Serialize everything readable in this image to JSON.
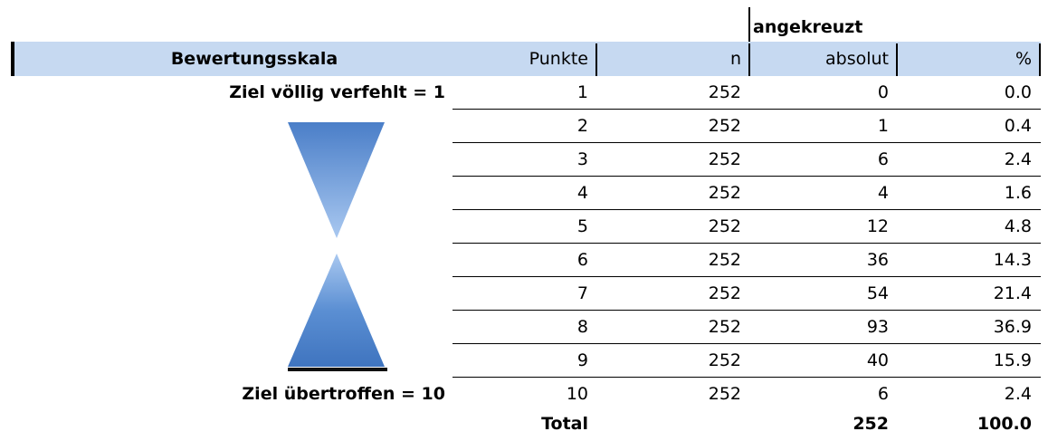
{
  "table": {
    "group_header": "angekreuzt",
    "columns": [
      "Bewertungsskala",
      "Punkte",
      "n",
      "absolut",
      "%"
    ],
    "scale_labels": {
      "top": "Ziel völlig verfehlt = 1",
      "bottom": "Ziel übertroffen = 10"
    },
    "rows": [
      [
        "1",
        "252",
        "0",
        "0.0"
      ],
      [
        "2",
        "252",
        "1",
        "0.4"
      ],
      [
        "3",
        "252",
        "6",
        "2.4"
      ],
      [
        "4",
        "252",
        "4",
        "1.6"
      ],
      [
        "5",
        "252",
        "12",
        "4.8"
      ],
      [
        "6",
        "252",
        "36",
        "14.3"
      ],
      [
        "7",
        "252",
        "54",
        "21.4"
      ],
      [
        "8",
        "252",
        "93",
        "36.9"
      ],
      [
        "9",
        "252",
        "40",
        "15.9"
      ],
      [
        "10",
        "252",
        "6",
        "2.4"
      ]
    ],
    "total": {
      "label": "Total",
      "absolut": "252",
      "percent": "100.0"
    }
  }
}
